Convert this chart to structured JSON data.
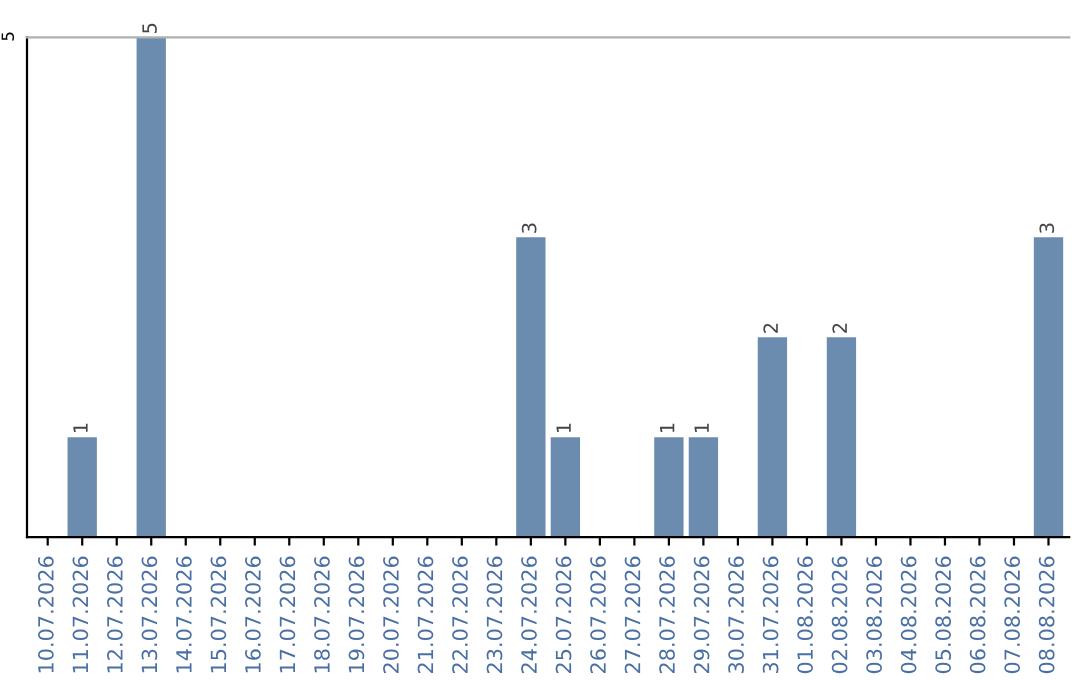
{
  "chart_data": {
    "type": "bar",
    "categories": [
      "10.07.2026",
      "11.07.2026",
      "12.07.2026",
      "13.07.2026",
      "14.07.2026",
      "15.07.2026",
      "16.07.2026",
      "17.07.2026",
      "18.07.2026",
      "19.07.2026",
      "20.07.2026",
      "21.07.2026",
      "22.07.2026",
      "23.07.2026",
      "24.07.2026",
      "25.07.2026",
      "26.07.2026",
      "27.07.2026",
      "28.07.2026",
      "29.07.2026",
      "30.07.2026",
      "31.07.2026",
      "01.08.2026",
      "02.08.2026",
      "03.08.2026",
      "04.08.2026",
      "05.08.2026",
      "06.08.2026",
      "07.08.2026",
      "08.08.2026"
    ],
    "values": [
      0,
      1,
      0,
      5,
      0,
      0,
      0,
      0,
      0,
      0,
      0,
      0,
      0,
      0,
      3,
      1,
      0,
      0,
      1,
      1,
      0,
      2,
      0,
      2,
      0,
      0,
      0,
      0,
      0,
      3
    ],
    "value_labels": [
      null,
      "1",
      null,
      "5",
      null,
      null,
      null,
      null,
      null,
      null,
      null,
      null,
      null,
      null,
      "3",
      "1",
      null,
      null,
      "1",
      "1",
      null,
      "2",
      null,
      "2",
      null,
      null,
      null,
      null,
      null,
      "3"
    ],
    "color": "#6b8cae",
    "ylim": [
      0,
      5
    ],
    "yticks": [
      5
    ]
  }
}
